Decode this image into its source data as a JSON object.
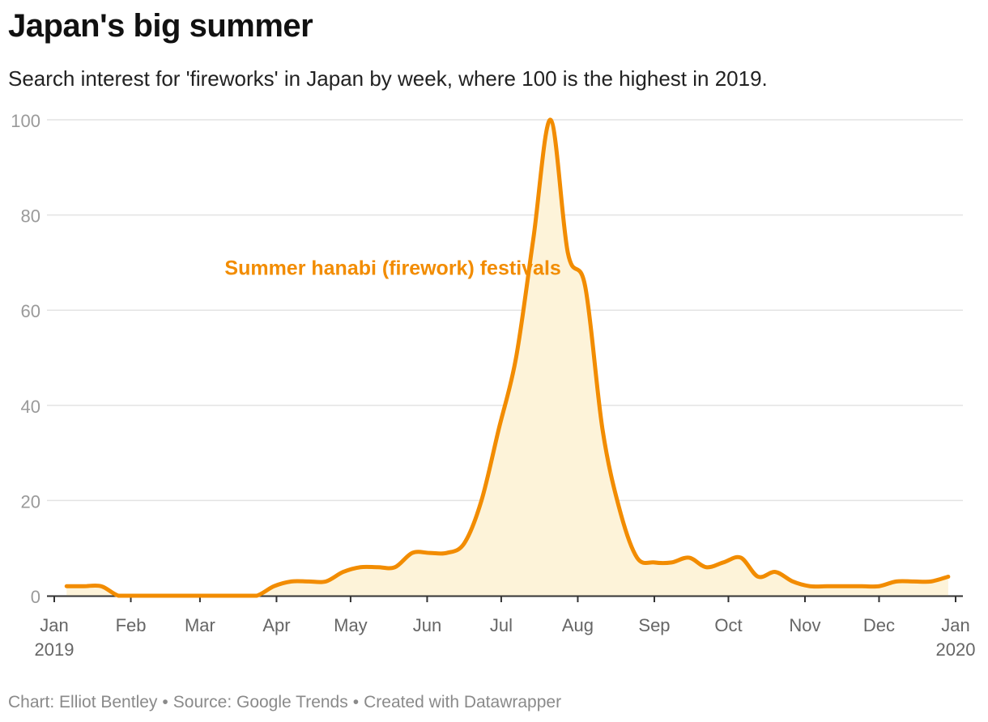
{
  "title": "Japan's big summer",
  "subtitle": "Search interest for 'fireworks' in Japan by week, where 100 is the highest in 2019.",
  "footer": {
    "chart_by": "Chart: Elliot Bentley",
    "source": "Source: Google Trends",
    "created": "Created with Datawrapper",
    "separator": "•"
  },
  "colors": {
    "line": "#f28c00",
    "area": "#fdf3d9",
    "grid": "#e3e3e3",
    "axis_text": "#9a9a9a",
    "x_axis_text": "#666666",
    "annotation": "#f28c00"
  },
  "chart_data": {
    "type": "area",
    "title": "Japan's big summer",
    "subtitle": "Search interest for 'fireworks' in Japan by week, where 100 is the highest in 2019.",
    "xlabel": "",
    "ylabel": "",
    "ylim": [
      0,
      100
    ],
    "xlim": [
      "2019-01-01",
      "2020-01-01"
    ],
    "grid": true,
    "y_ticks": [
      0,
      20,
      40,
      60,
      80,
      100
    ],
    "x_ticks": [
      {
        "date": "2019-01-01",
        "label": "Jan",
        "label2": "2019"
      },
      {
        "date": "2019-02-01",
        "label": "Feb",
        "label2": ""
      },
      {
        "date": "2019-03-01",
        "label": "Mar",
        "label2": ""
      },
      {
        "date": "2019-04-01",
        "label": "Apr",
        "label2": ""
      },
      {
        "date": "2019-05-01",
        "label": "May",
        "label2": ""
      },
      {
        "date": "2019-06-01",
        "label": "Jun",
        "label2": ""
      },
      {
        "date": "2019-07-01",
        "label": "Jul",
        "label2": ""
      },
      {
        "date": "2019-08-01",
        "label": "Aug",
        "label2": ""
      },
      {
        "date": "2019-09-01",
        "label": "Sep",
        "label2": ""
      },
      {
        "date": "2019-10-01",
        "label": "Oct",
        "label2": ""
      },
      {
        "date": "2019-11-01",
        "label": "Nov",
        "label2": ""
      },
      {
        "date": "2019-12-01",
        "label": "Dec",
        "label2": ""
      },
      {
        "date": "2020-01-01",
        "label": "Jan",
        "label2": "2020"
      }
    ],
    "series": [
      {
        "x": [
          "2019-01-06",
          "2019-01-13",
          "2019-01-20",
          "2019-01-27",
          "2019-02-03",
          "2019-02-10",
          "2019-02-17",
          "2019-02-24",
          "2019-03-03",
          "2019-03-10",
          "2019-03-17",
          "2019-03-24",
          "2019-03-31",
          "2019-04-07",
          "2019-04-14",
          "2019-04-21",
          "2019-04-28",
          "2019-05-05",
          "2019-05-12",
          "2019-05-19",
          "2019-05-26",
          "2019-06-02",
          "2019-06-09",
          "2019-06-16",
          "2019-06-23",
          "2019-06-30",
          "2019-07-07",
          "2019-07-14",
          "2019-07-21",
          "2019-07-28",
          "2019-08-04",
          "2019-08-11",
          "2019-08-18",
          "2019-08-25",
          "2019-09-01",
          "2019-09-08",
          "2019-09-15",
          "2019-09-22",
          "2019-09-29",
          "2019-10-06",
          "2019-10-13",
          "2019-10-20",
          "2019-10-27",
          "2019-11-03",
          "2019-11-10",
          "2019-11-17",
          "2019-11-24",
          "2019-12-01",
          "2019-12-08",
          "2019-12-15",
          "2019-12-22",
          "2019-12-29"
        ],
        "values": [
          2,
          2,
          2,
          0,
          0,
          0,
          0,
          0,
          0,
          0,
          0,
          0,
          2,
          3,
          3,
          3,
          5,
          6,
          6,
          6,
          9,
          9,
          9,
          11,
          20,
          35,
          50,
          75,
          100,
          72,
          65,
          35,
          18,
          8,
          7,
          7,
          8,
          6,
          7,
          8,
          4,
          5,
          3,
          2,
          2,
          2,
          2,
          2,
          3,
          3,
          3,
          4
        ]
      }
    ],
    "annotations": [
      {
        "text": "Summer hanabi (firework) festivals",
        "x": "2019-03-11",
        "y": 69
      }
    ]
  }
}
